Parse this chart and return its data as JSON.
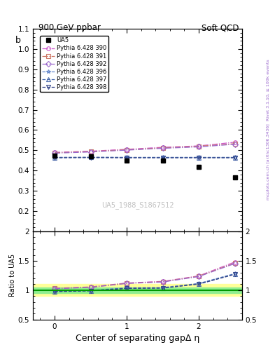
{
  "title_left": "900 GeV ppbar",
  "title_right": "Soft QCD",
  "right_label_top": "Rivet 3.1.10, ≥ 100k events",
  "right_label_bottom": "mcplots.cern.ch [arXiv:1306.3436]",
  "watermark": "UA5_1988_S1867512",
  "xlabel": "Center of separating gapΔ η",
  "ylabel_main": "b",
  "ylabel_ratio": "Ratio to UA5",
  "main_ylim": [
    0.1,
    1.1
  ],
  "ratio_ylim": [
    0.5,
    2.0
  ],
  "xlim": [
    -0.3,
    2.6
  ],
  "ua5_x": [
    0.0,
    0.5,
    1.0,
    1.5,
    2.0,
    2.5
  ],
  "ua5_y": [
    0.475,
    0.47,
    0.45,
    0.448,
    0.42,
    0.365
  ],
  "pythia_x": [
    0.0,
    0.5,
    1.0,
    1.5,
    2.0,
    2.5
  ],
  "series": [
    {
      "label": "Pythia 6.428 390",
      "color": "#cc55cc",
      "linestyle": "-.",
      "marker": "o",
      "fillstyle": "none",
      "y": [
        0.49,
        0.496,
        0.505,
        0.515,
        0.522,
        0.54
      ]
    },
    {
      "label": "Pythia 6.428 391",
      "color": "#cc7766",
      "linestyle": "-.",
      "marker": "s",
      "fillstyle": "none",
      "y": [
        0.488,
        0.494,
        0.503,
        0.512,
        0.52,
        0.533
      ]
    },
    {
      "label": "Pythia 6.428 392",
      "color": "#9966cc",
      "linestyle": "-.",
      "marker": "D",
      "fillstyle": "none",
      "y": [
        0.486,
        0.492,
        0.501,
        0.51,
        0.517,
        0.53
      ]
    },
    {
      "label": "Pythia 6.428 396",
      "color": "#6688cc",
      "linestyle": "--",
      "marker": "*",
      "fillstyle": "none",
      "y": [
        0.468,
        0.468,
        0.468,
        0.468,
        0.468,
        0.468
      ]
    },
    {
      "label": "Pythia 6.428 397",
      "color": "#4466aa",
      "linestyle": "--",
      "marker": "^",
      "fillstyle": "none",
      "y": [
        0.465,
        0.466,
        0.465,
        0.465,
        0.465,
        0.465
      ]
    },
    {
      "label": "Pythia 6.428 398",
      "color": "#334488",
      "linestyle": "--",
      "marker": "v",
      "fillstyle": "none",
      "y": [
        0.463,
        0.464,
        0.463,
        0.463,
        0.463,
        0.463
      ]
    }
  ],
  "ratio_band_yellow": "#ffff99",
  "ratio_band_green": "#90ee90",
  "ratio_line_color": "#009900"
}
